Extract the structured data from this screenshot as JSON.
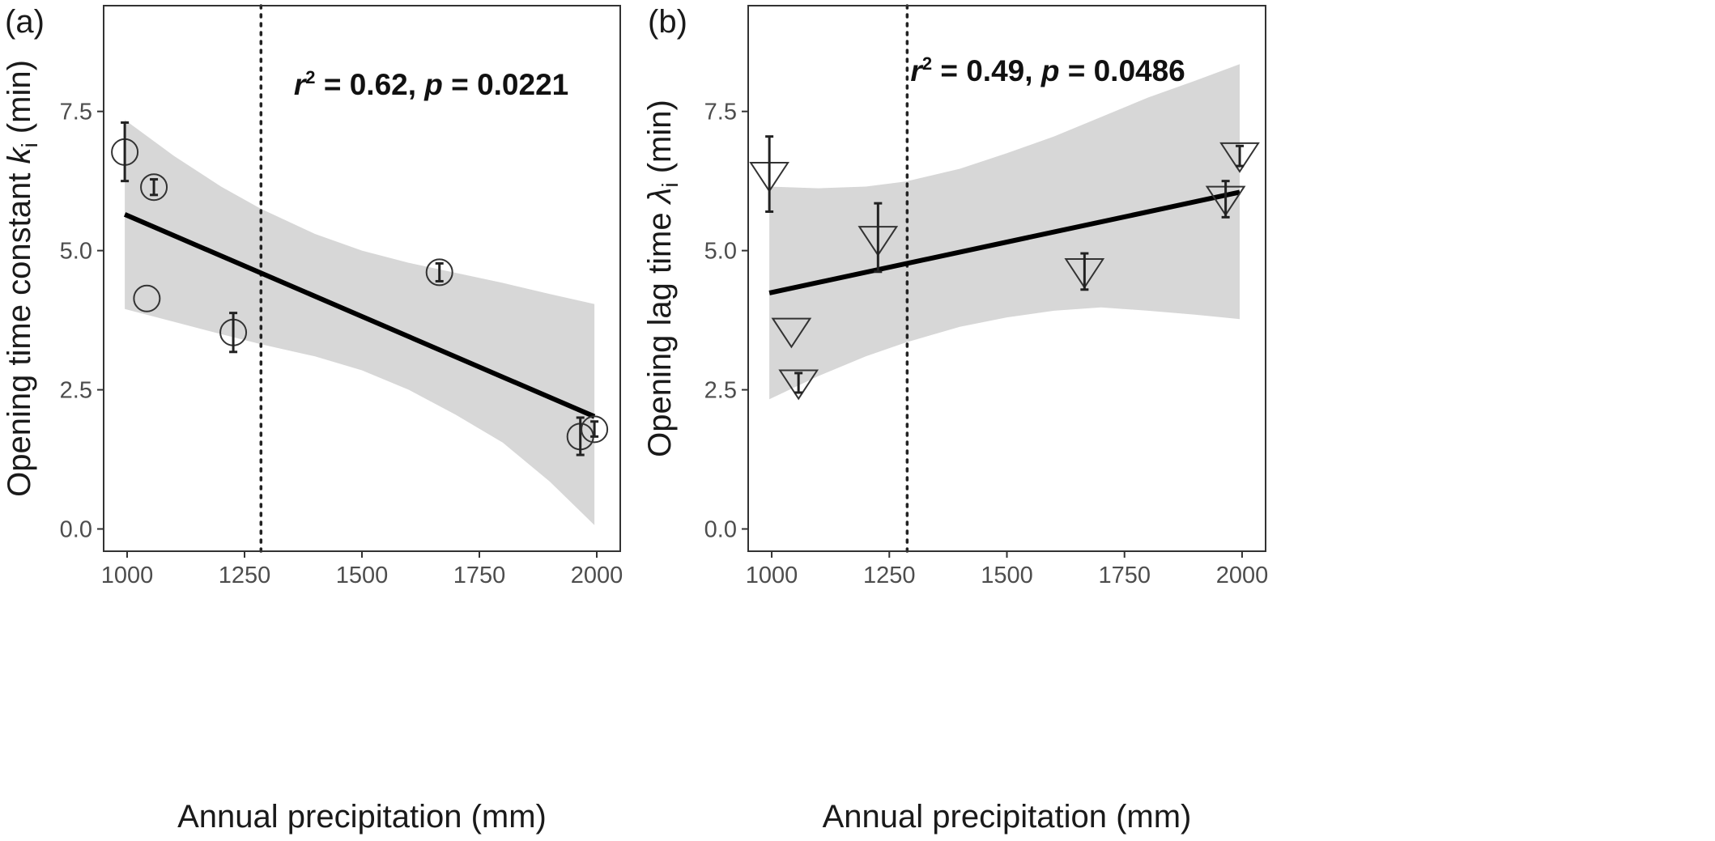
{
  "chart_data": [
    {
      "panel_label": "(a)",
      "type": "scatter",
      "marker": "circle",
      "xlabel": "Annual precipitation (mm)",
      "ylabel_prefix": "Opening time constant ",
      "ylabel_symbol": "k",
      "ylabel_subscript": "i",
      "ylabel_suffix": " (min)",
      "xlim": [
        950,
        2050
      ],
      "ylim": [
        -0.4,
        9.4
      ],
      "xticks": [
        1000,
        1250,
        1500,
        1750,
        2000
      ],
      "yticks": [
        0.0,
        2.5,
        5.0,
        7.5
      ],
      "ytick_labels": [
        "0.0",
        "2.5",
        "5.0",
        "7.5"
      ],
      "grid": false,
      "vline_x": 1285,
      "annotation": {
        "r_symbol": "r",
        "sup": "2",
        "mid": " = 0.62, ",
        "p_symbol": "p",
        "tail": " = 0.0221",
        "x": 1355,
        "y": 7.8
      },
      "fit": {
        "x": [
          995,
          1995
        ],
        "y": [
          5.65,
          2.02
        ]
      },
      "band": {
        "x": [
          995,
          1100,
          1200,
          1285,
          1400,
          1500,
          1600,
          1700,
          1800,
          1900,
          1995
        ],
        "upper": [
          7.35,
          6.7,
          6.15,
          5.75,
          5.3,
          5.0,
          4.78,
          4.6,
          4.42,
          4.22,
          4.04
        ],
        "lower": [
          3.95,
          3.72,
          3.5,
          3.32,
          3.1,
          2.85,
          2.5,
          2.05,
          1.55,
          0.85,
          0.07
        ]
      },
      "points": [
        {
          "x": 995,
          "y": 6.77,
          "err_low": 6.25,
          "err_high": 7.3
        },
        {
          "x": 1057,
          "y": 6.14,
          "err_low": 6.0,
          "err_high": 6.28
        },
        {
          "x": 1042,
          "y": 4.14,
          "err_low": null,
          "err_high": null
        },
        {
          "x": 1226,
          "y": 3.53,
          "err_low": 3.18,
          "err_high": 3.88
        },
        {
          "x": 1665,
          "y": 4.61,
          "err_low": 4.45,
          "err_high": 4.77
        },
        {
          "x": 1965,
          "y": 1.66,
          "err_low": 1.33,
          "err_high": 2.0
        },
        {
          "x": 1995,
          "y": 1.79,
          "err_low": 1.66,
          "err_high": 1.93
        }
      ]
    },
    {
      "panel_label": "(b)",
      "type": "scatter",
      "marker": "triangle-down",
      "xlabel": "Annual precipitation (mm)",
      "ylabel_prefix": "Opening lag time ",
      "ylabel_symbol": "λ",
      "ylabel_subscript": "i",
      "ylabel_suffix": " (min)",
      "xlim": [
        950,
        2050
      ],
      "ylim": [
        -0.4,
        9.4
      ],
      "xticks": [
        1000,
        1250,
        1500,
        1750,
        2000
      ],
      "yticks": [
        0.0,
        2.5,
        5.0,
        7.5
      ],
      "ytick_labels": [
        "0.0",
        "2.5",
        "5.0",
        "7.5"
      ],
      "grid": false,
      "vline_x": 1288,
      "annotation": {
        "r_symbol": "r",
        "sup": "2",
        "mid": " = 0.49, ",
        "p_symbol": "p",
        "tail": " = 0.0486",
        "x": 1295,
        "y": 8.05
      },
      "fit": {
        "x": [
          995,
          1995
        ],
        "y": [
          4.24,
          6.05
        ]
      },
      "band": {
        "x": [
          995,
          1100,
          1200,
          1285,
          1400,
          1500,
          1600,
          1700,
          1800,
          1900,
          1995
        ],
        "upper": [
          6.15,
          6.12,
          6.15,
          6.24,
          6.47,
          6.75,
          7.05,
          7.4,
          7.75,
          8.05,
          8.35
        ],
        "lower": [
          2.33,
          2.75,
          3.1,
          3.35,
          3.63,
          3.8,
          3.92,
          3.98,
          3.92,
          3.85,
          3.77
        ]
      },
      "points": [
        {
          "x": 995,
          "y": 6.35,
          "err_low": 5.7,
          "err_high": 7.05
        },
        {
          "x": 1042,
          "y": 3.55,
          "err_low": null,
          "err_high": null
        },
        {
          "x": 1057,
          "y": 2.62,
          "err_low": 2.45,
          "err_high": 2.8
        },
        {
          "x": 1226,
          "y": 5.2,
          "err_low": 4.62,
          "err_high": 5.85
        },
        {
          "x": 1665,
          "y": 4.62,
          "err_low": 4.3,
          "err_high": 4.95
        },
        {
          "x": 1965,
          "y": 5.92,
          "err_low": 5.6,
          "err_high": 6.25
        },
        {
          "x": 1995,
          "y": 6.7,
          "err_low": 6.52,
          "err_high": 6.88
        }
      ]
    }
  ]
}
